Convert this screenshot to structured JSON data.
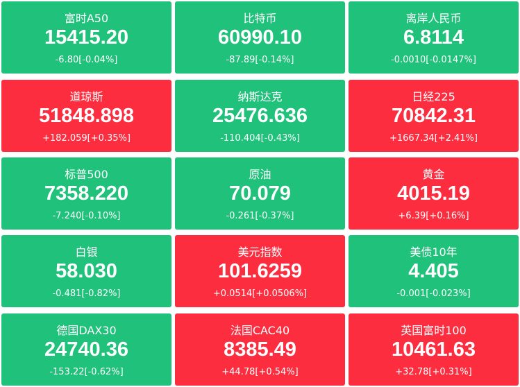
{
  "tiles": [
    {
      "name": "富时A50",
      "price": "15415.20",
      "change": "-6.80[-0.04%]",
      "color": "#1fc17b"
    },
    {
      "name": "比特币",
      "price": "60990.10",
      "change": "-87.89[-0.14%]",
      "color": "#1fc17b"
    },
    {
      "name": "离岸人民币",
      "price": "6.8114",
      "change": "-0.0010[-0.0147%]",
      "color": "#1fc17b"
    },
    {
      "name": "道琼斯",
      "price": "51848.898",
      "change": "+182.059[+0.35%]",
      "color": "#fd2d40"
    },
    {
      "name": "纳斯达克",
      "price": "25476.636",
      "change": "-110.404[-0.43%]",
      "color": "#1fc17b"
    },
    {
      "name": "日经225",
      "price": "70842.31",
      "change": "+1667.34[+2.41%]",
      "color": "#fd2d40"
    },
    {
      "name": "标普500",
      "price": "7358.220",
      "change": "-7.240[-0.10%]",
      "color": "#1fc17b"
    },
    {
      "name": "原油",
      "price": "70.079",
      "change": "-0.261[-0.37%]",
      "color": "#1fc17b"
    },
    {
      "name": "黄金",
      "price": "4015.19",
      "change": "+6.39[+0.16%]",
      "color": "#fd2d40"
    },
    {
      "name": "白银",
      "price": "58.030",
      "change": "-0.481[-0.82%]",
      "color": "#1fc17b"
    },
    {
      "name": "美元指数",
      "price": "101.6259",
      "change": "+0.0514[+0.0506%]",
      "color": "#fd2d40"
    },
    {
      "name": "美债10年",
      "price": "4.405",
      "change": "-0.001[-0.023%]",
      "color": "#1fc17b"
    },
    {
      "name": "德国DAX30",
      "price": "24740.36",
      "change": "-153.22[-0.62%]",
      "color": "#1fc17b"
    },
    {
      "name": "法国CAC40",
      "price": "8385.49",
      "change": "+44.78[+0.54%]",
      "color": "#fd2d40"
    },
    {
      "name": "英国富时100",
      "price": "10461.63",
      "change": "+32.78[+0.31%]",
      "color": "#fd2d40"
    }
  ]
}
